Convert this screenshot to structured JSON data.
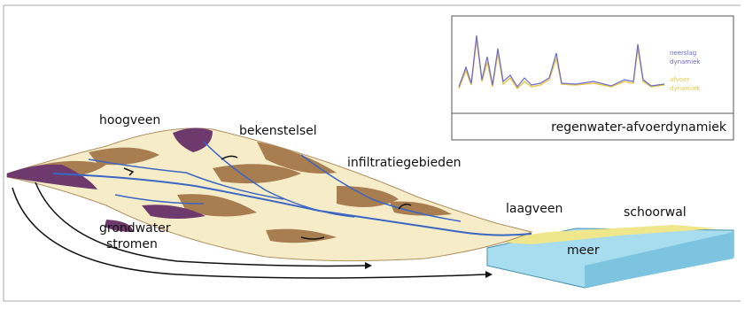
{
  "terrain_labels": [
    "hoogveen",
    "bekenstelsel",
    "infiltratiegebieden",
    "laagveen",
    "schoorwal",
    "meer"
  ],
  "groundwater_label": [
    "grondwater",
    "stromen"
  ],
  "inset": {
    "title": "regenwater-afvoerdynamiek",
    "legend": [
      "neerslag",
      "dynamiek",
      "afvoer",
      "dynamiek"
    ]
  }
}
